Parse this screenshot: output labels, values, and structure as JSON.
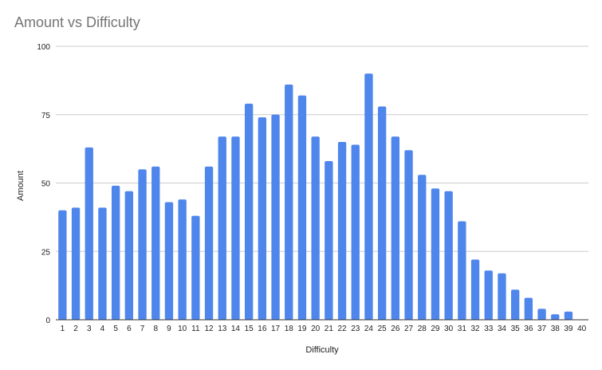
{
  "chart_data": {
    "type": "bar",
    "title": "Amount vs Difficulty",
    "xlabel": "Difficulty",
    "ylabel": "Amount",
    "ylim": [
      0,
      100
    ],
    "yticks": [
      0,
      25,
      50,
      75,
      100
    ],
    "grid": true,
    "bar_color": "#4f86ec",
    "categories": [
      "1",
      "2",
      "3",
      "4",
      "5",
      "6",
      "7",
      "8",
      "9",
      "10",
      "11",
      "12",
      "13",
      "14",
      "15",
      "16",
      "17",
      "18",
      "19",
      "20",
      "21",
      "22",
      "23",
      "24",
      "25",
      "26",
      "27",
      "28",
      "29",
      "30",
      "31",
      "32",
      "33",
      "34",
      "35",
      "36",
      "37",
      "38",
      "39",
      "40"
    ],
    "values": [
      40,
      41,
      63,
      41,
      49,
      47,
      55,
      56,
      43,
      44,
      38,
      56,
      67,
      67,
      79,
      74,
      75,
      86,
      82,
      67,
      58,
      65,
      64,
      90,
      78,
      67,
      62,
      53,
      48,
      47,
      36,
      22,
      18,
      17,
      11,
      8,
      4,
      2,
      3,
      0
    ]
  }
}
